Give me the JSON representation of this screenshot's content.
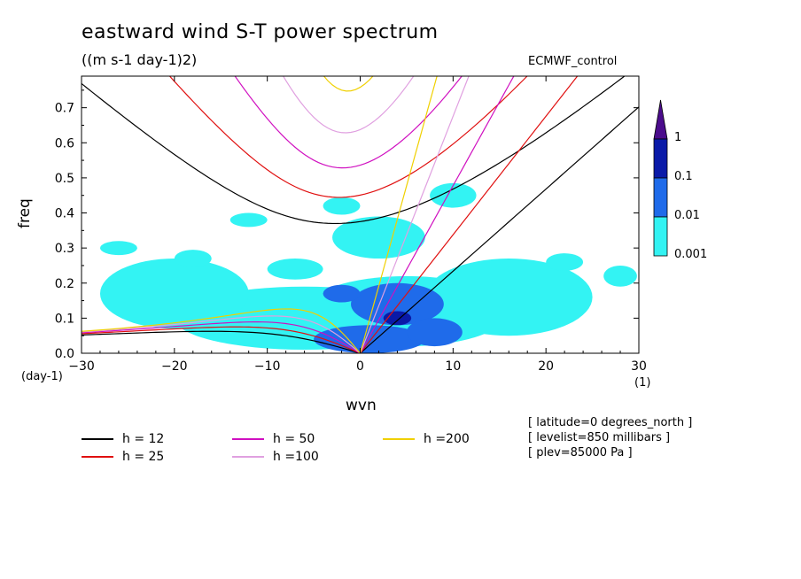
{
  "header": {
    "title": "eastward wind S-T power spectrum",
    "units": "((m s-1 day-1)2)",
    "dataset": "ECMWF_control"
  },
  "axes": {
    "y_label": "freq",
    "y_unit": "(day-1)",
    "x_label": "wvn",
    "x_unit": "(1)"
  },
  "colorbar": {
    "levels": [
      "1",
      "0.1",
      "0.01",
      "0.001"
    ],
    "colors": [
      "#4b0c8c",
      "#0a1aa8",
      "#1f6bea",
      "#33f3f3"
    ]
  },
  "info": [
    "[ latitude=0 degrees_north ]",
    "[ levelist=850 millibars ]",
    "[ plev=85000 Pa ]"
  ],
  "legend": [
    {
      "label": "h = 12",
      "color": "#000000"
    },
    {
      "label": "h = 25",
      "color": "#e01010"
    },
    {
      "label": "h = 50",
      "color": "#d010c0"
    },
    {
      "label": "h =100",
      "color": "#e0a0e0"
    },
    {
      "label": "h =200",
      "color": "#f0d000"
    }
  ],
  "chart_data": {
    "type": "heatmap",
    "title": "eastward wind S-T power spectrum",
    "subtitle": "((m s-1 day-1)2)",
    "xlabel": "wvn",
    "ylabel": "freq",
    "xlim": [
      -30,
      30
    ],
    "ylim": [
      0,
      0.79
    ],
    "x_ticks": [
      -30,
      -20,
      -10,
      0,
      10,
      20,
      30
    ],
    "y_ticks": [
      0.0,
      0.1,
      0.2,
      0.3,
      0.4,
      0.5,
      0.6,
      0.7
    ],
    "y_tick_labels": [
      "0.0",
      "0.1",
      "0.2",
      "0.3",
      "0.4",
      "0.5",
      "0.6",
      "0.7"
    ],
    "contour_levels": [
      0.001,
      0.01,
      0.1,
      1
    ],
    "blobs": [
      {
        "level": 0.001,
        "wvn": 2,
        "freq": 0.33,
        "rx": 5,
        "ry": 0.06
      },
      {
        "level": 0.001,
        "wvn": 5,
        "freq": 0.12,
        "rx": 11,
        "ry": 0.1
      },
      {
        "level": 0.001,
        "wvn": -6,
        "freq": 0.1,
        "rx": 14,
        "ry": 0.09
      },
      {
        "level": 0.001,
        "wvn": -20,
        "freq": 0.17,
        "rx": 8,
        "ry": 0.1
      },
      {
        "level": 0.001,
        "wvn": 16,
        "freq": 0.16,
        "rx": 9,
        "ry": 0.11
      },
      {
        "level": 0.001,
        "wvn": 10,
        "freq": 0.45,
        "rx": 2.5,
        "ry": 0.035
      },
      {
        "level": 0.001,
        "wvn": -18,
        "freq": 0.27,
        "rx": 2,
        "ry": 0.025
      },
      {
        "level": 0.001,
        "wvn": -7,
        "freq": 0.24,
        "rx": 3,
        "ry": 0.03
      },
      {
        "level": 0.001,
        "wvn": -26,
        "freq": 0.3,
        "rx": 2,
        "ry": 0.02
      },
      {
        "level": 0.001,
        "wvn": -2,
        "freq": 0.42,
        "rx": 2,
        "ry": 0.025
      },
      {
        "level": 0.001,
        "wvn": -12,
        "freq": 0.38,
        "rx": 2,
        "ry": 0.02
      },
      {
        "level": 0.001,
        "wvn": 22,
        "freq": 0.26,
        "rx": 2,
        "ry": 0.025
      },
      {
        "level": 0.001,
        "wvn": 28,
        "freq": 0.22,
        "rx": 1.8,
        "ry": 0.03
      },
      {
        "level": 0.01,
        "wvn": 4,
        "freq": 0.14,
        "rx": 5,
        "ry": 0.06
      },
      {
        "level": 0.01,
        "wvn": 1,
        "freq": 0.04,
        "rx": 6,
        "ry": 0.04
      },
      {
        "level": 0.01,
        "wvn": -2,
        "freq": 0.17,
        "rx": 2,
        "ry": 0.025
      },
      {
        "level": 0.01,
        "wvn": 8,
        "freq": 0.06,
        "rx": 3,
        "ry": 0.04
      },
      {
        "level": 0.1,
        "wvn": 4,
        "freq": 0.1,
        "rx": 1.5,
        "ry": 0.02
      }
    ],
    "series": [
      {
        "name": "h = 12",
        "values": [
          {
            "curve": "kelvin",
            "h": 12
          },
          {
            "curve": "ig",
            "h": 12
          },
          {
            "curve": "rossby",
            "h": 12
          }
        ]
      },
      {
        "name": "h = 25",
        "values": [
          {
            "curve": "kelvin",
            "h": 25
          },
          {
            "curve": "ig",
            "h": 25
          },
          {
            "curve": "rossby",
            "h": 25
          }
        ]
      },
      {
        "name": "h = 50",
        "values": [
          {
            "curve": "kelvin",
            "h": 50
          },
          {
            "curve": "ig",
            "h": 50
          },
          {
            "curve": "rossby",
            "h": 50
          }
        ]
      },
      {
        "name": "h =100",
        "values": [
          {
            "curve": "kelvin",
            "h": 100
          },
          {
            "curve": "ig",
            "h": 100
          },
          {
            "curve": "rossby",
            "h": 100
          }
        ]
      },
      {
        "name": "h =200",
        "values": [
          {
            "curve": "kelvin",
            "h": 200
          },
          {
            "curve": "ig",
            "h": 200
          },
          {
            "curve": "rossby",
            "h": 200
          }
        ]
      }
    ]
  }
}
